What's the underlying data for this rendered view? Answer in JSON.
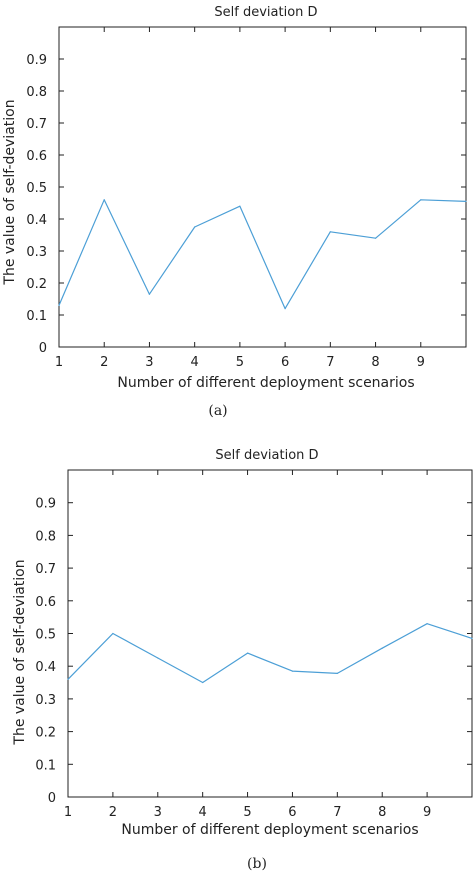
{
  "figure": {
    "captions": [
      "(a)",
      "(b)"
    ]
  },
  "chart_data": [
    {
      "type": "line",
      "title": "Self deviation D",
      "xlabel": "Number of different deployment scenarios",
      "ylabel": "The value of self-deviation",
      "x": [
        1,
        2,
        3,
        4,
        5,
        6,
        7,
        8,
        9,
        10
      ],
      "x_ticks": [
        1,
        2,
        3,
        4,
        5,
        6,
        7,
        8,
        9
      ],
      "y_ticks": [
        0,
        0.1,
        0.2,
        0.3,
        0.4,
        0.5,
        0.6,
        0.7,
        0.8,
        0.9
      ],
      "xlim": [
        1,
        10
      ],
      "ylim": [
        0,
        1
      ],
      "series": [
        {
          "values": [
            0.13,
            0.46,
            0.165,
            0.375,
            0.44,
            0.12,
            0.36,
            0.34,
            0.46,
            0.455
          ],
          "color": "#4c9fd6"
        }
      ],
      "grid": false,
      "caption": "(a)"
    },
    {
      "type": "line",
      "title": "Self deviation D",
      "xlabel": "Number of different deployment scenarios",
      "ylabel": "The value of self-deviation",
      "x": [
        1,
        2,
        3,
        4,
        5,
        6,
        7,
        8,
        9,
        10
      ],
      "x_ticks": [
        1,
        2,
        3,
        4,
        5,
        6,
        7,
        8,
        9
      ],
      "y_ticks": [
        0,
        0.1,
        0.2,
        0.3,
        0.4,
        0.5,
        0.6,
        0.7,
        0.8,
        0.9
      ],
      "xlim": [
        1,
        10
      ],
      "ylim": [
        0,
        1
      ],
      "series": [
        {
          "values": [
            0.36,
            0.5,
            0.425,
            0.35,
            0.44,
            0.385,
            0.378,
            0.455,
            0.53,
            0.485
          ],
          "color": "#4c9fd6"
        }
      ],
      "grid": false,
      "caption": "(b)"
    }
  ]
}
